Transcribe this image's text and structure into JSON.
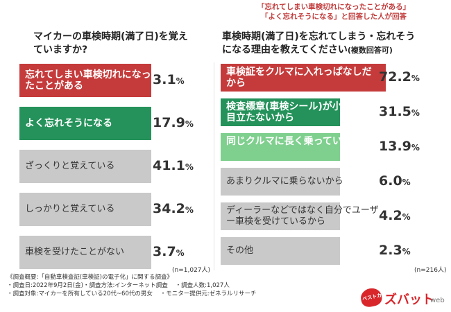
{
  "left": {
    "title": "マイカーの車検時期(満了日)を覚えていますか?",
    "n": "(n=1,027人)",
    "items": [
      {
        "label": "忘れてしまい車検切れになったことがある",
        "value": 3.1,
        "value_text": "3.1",
        "color": "#c53b3b",
        "text_color": "#ffffff"
      },
      {
        "label": "よく忘れそうになる",
        "value": 17.9,
        "value_text": "17.9",
        "color": "#24925a",
        "text_color": "#ffffff"
      },
      {
        "label": "ざっくりと覚えている",
        "value": 41.1,
        "value_text": "41.1",
        "color": "#c9c9c9",
        "text_color": "#333333"
      },
      {
        "label": "しっかりと覚えている",
        "value": 34.2,
        "value_text": "34.2",
        "color": "#c9c9c9",
        "text_color": "#333333"
      },
      {
        "label": "車検を受けたことがない",
        "value": 3.7,
        "value_text": "3.7",
        "color": "#c9c9c9",
        "text_color": "#333333"
      }
    ]
  },
  "right": {
    "note_line1": "「忘れてしまい車検切れになったことがある」",
    "note_line2": "「よく忘れそうになる」と回答した人が回答",
    "title_main": "車検時期(満了日)を忘れてしまう・忘れそうになる理由を教えてください",
    "title_sub": "(複数回答可)",
    "n": "(n=216人)",
    "items": [
      {
        "label": "車検証をクルマに入れっぱなしだから",
        "value": 72.2,
        "value_text": "72.2",
        "color": "#c53b3b",
        "text_color": "#ffffff"
      },
      {
        "label": "検査標章(車検シール)が小さくて目立たないから",
        "value": 31.5,
        "value_text": "31.5",
        "color": "#24925a",
        "text_color": "#ffffff"
      },
      {
        "label": "同じクルマに長く乗っているから",
        "value": 13.9,
        "value_text": "13.9",
        "color": "#7fcf8e",
        "text_color": "#ffffff"
      },
      {
        "label": "あまりクルマに乗らないから",
        "value": 6.0,
        "value_text": "6.0",
        "color": "#c9c9c9",
        "text_color": "#333333"
      },
      {
        "label": "ディーラーなどではなく自分でユーザー車検を受けているから",
        "value": 4.2,
        "value_text": "4.2",
        "color": "#c9c9c9",
        "text_color": "#333333"
      },
      {
        "label": "その他",
        "value": 2.3,
        "value_text": "2.3",
        "color": "#c9c9c9",
        "text_color": "#333333"
      }
    ]
  },
  "unit": "%",
  "footer": {
    "line1": "《調査概要:「自動車検査証(車検証)の電子化」に関する調査》",
    "line2a": "・調査日:2022年9月2日(金)・調査方法:インターネット調査",
    "line2b": "・調査人数:1,027人",
    "line3a": "・調査対象:マイカーを所有している20代~60代の男女",
    "line3b": "・モニター提供元:ゼネラルリサーチ"
  },
  "logo_text": "ベストカー",
  "logo_main": "ズバット",
  "logo_web": "web",
  "chart_data": [
    {
      "type": "bar",
      "orientation": "horizontal",
      "title": "マイカーの車検時期(満了日)を覚えていますか?",
      "categories": [
        "忘れてしまい車検切れになったことがある",
        "よく忘れそうになる",
        "ざっくりと覚えている",
        "しっかりと覚えている",
        "車検を受けたことがない"
      ],
      "values": [
        3.1,
        17.9,
        41.1,
        34.2,
        3.7
      ],
      "unit": "%",
      "n": "n=1,027人"
    },
    {
      "type": "bar",
      "orientation": "horizontal",
      "title": "車検時期(満了日)を忘れてしまう・忘れそうになる理由を教えてください(複数回答可)",
      "categories": [
        "車検証をクルマに入れっぱなしだから",
        "検査標章(車検シール)が小さくて目立たないから",
        "同じクルマに長く乗っているから",
        "あまりクルマに乗らないから",
        "ディーラーなどではなく自分でユーザー車検を受けているから",
        "その他"
      ],
      "values": [
        72.2,
        31.5,
        13.9,
        6.0,
        4.2,
        2.3
      ],
      "unit": "%",
      "n": "n=216人"
    }
  ]
}
